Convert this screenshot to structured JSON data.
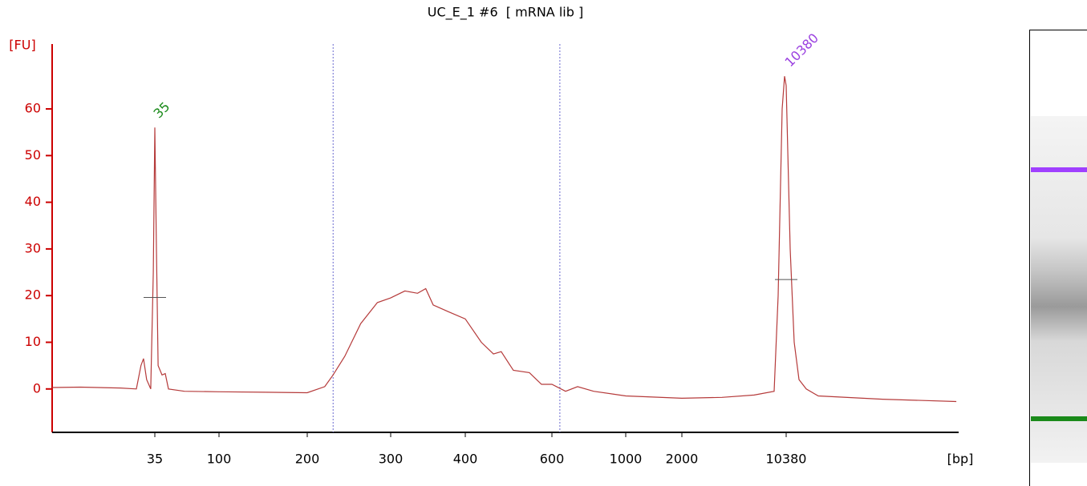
{
  "chart_data": {
    "type": "line",
    "title": "UC_E_1 #6  [ mRNA lib ]",
    "y_label": "[FU]",
    "x_label": "[bp]",
    "color": "#b53a3a",
    "axis_color": "#cc0000",
    "x": [
      15,
      20.5,
      28.3,
      31.4,
      32.3,
      32.8,
      33.4,
      34.2,
      34.7,
      35,
      36.6,
      38.3,
      42.3,
      45.6,
      48.8,
      65,
      100,
      152,
      200,
      221,
      231,
      245,
      264,
      284,
      300,
      319,
      336,
      347,
      357,
      378,
      400,
      437,
      465,
      483,
      511,
      548,
      576,
      600,
      674,
      739,
      826,
      1000,
      2000,
      5225,
      7805,
      9416,
      9738,
      10057,
      10251,
      10380,
      10487,
      10595,
      10724,
      10917,
      11240,
      12960,
      14938
    ],
    "values": [
      0.3,
      0.4,
      0.2,
      0,
      5,
      6.5,
      2,
      0,
      25,
      56,
      30,
      5,
      3,
      3.3,
      0,
      -0.5,
      -0.6,
      -0.7,
      -0.8,
      0.5,
      3,
      7,
      14,
      18.5,
      19.5,
      21,
      20.5,
      21.5,
      18,
      16.5,
      15,
      10,
      7.5,
      8,
      4,
      3.5,
      1,
      1,
      -0.5,
      0.5,
      -0.5,
      -1.5,
      -2,
      -1.8,
      -1.3,
      -0.5,
      20,
      60,
      67,
      65,
      30,
      10,
      2,
      0,
      -1.5,
      -2.2,
      -2.7
    ],
    "xlim": [
      15,
      15000
    ],
    "xticks": [
      35,
      100,
      200,
      300,
      400,
      600,
      1000,
      2000,
      10380
    ],
    "ylim": [
      -9.3,
      73.9
    ],
    "yticks": [
      0,
      10,
      20,
      30,
      40,
      50,
      60
    ],
    "region_markers": [
      231,
      643
    ],
    "region_color": "#6a6ad0",
    "peak_labels": [
      {
        "x": 35,
        "y": 56,
        "color": "#1a8a1a"
      },
      {
        "x": 10380,
        "y": 67,
        "color": "#9a40e0"
      }
    ]
  }
}
